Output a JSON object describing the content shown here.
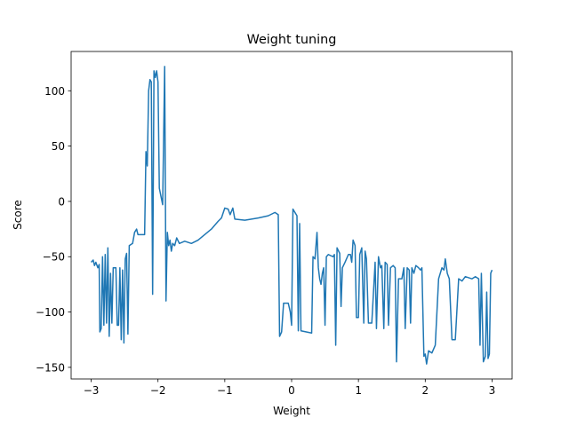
{
  "chart_data": {
    "type": "line",
    "title": "Weight tuning",
    "x_label": "Weight",
    "y_label": "Score",
    "color": "#1f77b4",
    "x": [
      -3.0,
      -2.97,
      -2.95,
      -2.93,
      -2.9,
      -2.88,
      -2.87,
      -2.85,
      -2.83,
      -2.81,
      -2.79,
      -2.77,
      -2.75,
      -2.73,
      -2.71,
      -2.69,
      -2.67,
      -2.63,
      -2.61,
      -2.59,
      -2.57,
      -2.55,
      -2.53,
      -2.51,
      -2.49,
      -2.47,
      -2.45,
      -2.43,
      -2.38,
      -2.35,
      -2.32,
      -2.3,
      -2.2,
      -2.18,
      -2.16,
      -2.14,
      -2.12,
      -2.1,
      -2.08,
      -2.06,
      -2.04,
      -2.02,
      -2.0,
      -1.98,
      -1.95,
      -1.93,
      -1.9,
      -1.88,
      -1.86,
      -1.84,
      -1.82,
      -1.8,
      -1.78,
      -1.75,
      -1.72,
      -1.68,
      -1.6,
      -1.5,
      -1.4,
      -1.3,
      -1.2,
      -1.1,
      -1.05,
      -1.0,
      -0.95,
      -0.92,
      -0.88,
      -0.85,
      -0.7,
      -0.5,
      -0.35,
      -0.25,
      -0.2,
      -0.18,
      -0.15,
      -0.12,
      -0.05,
      -0.02,
      0.0,
      0.02,
      0.05,
      0.08,
      0.1,
      0.12,
      0.14,
      0.3,
      0.32,
      0.35,
      0.38,
      0.4,
      0.42,
      0.44,
      0.46,
      0.48,
      0.5,
      0.52,
      0.55,
      0.62,
      0.64,
      0.66,
      0.68,
      0.72,
      0.74,
      0.76,
      0.8,
      0.85,
      0.88,
      0.9,
      0.92,
      0.95,
      0.97,
      1.0,
      1.02,
      1.05,
      1.08,
      1.1,
      1.12,
      1.15,
      1.2,
      1.25,
      1.27,
      1.3,
      1.33,
      1.35,
      1.38,
      1.4,
      1.43,
      1.45,
      1.48,
      1.52,
      1.55,
      1.57,
      1.6,
      1.65,
      1.68,
      1.7,
      1.73,
      1.76,
      1.78,
      1.8,
      1.83,
      1.86,
      1.9,
      1.93,
      1.95,
      1.98,
      2.0,
      2.02,
      2.05,
      2.1,
      2.15,
      2.2,
      2.25,
      2.28,
      2.3,
      2.33,
      2.36,
      2.4,
      2.45,
      2.5,
      2.55,
      2.6,
      2.7,
      2.75,
      2.8,
      2.82,
      2.84,
      2.87,
      2.9,
      2.92,
      2.94,
      2.96,
      2.98,
      3.0
    ],
    "values": [
      -55,
      -53,
      -58,
      -55,
      -60,
      -57,
      -118,
      -115,
      -50,
      -112,
      -48,
      -110,
      -42,
      -122,
      -65,
      -110,
      -60,
      -60,
      -112,
      -112,
      -60,
      -125,
      -62,
      -128,
      -52,
      -47,
      -120,
      -40,
      -38,
      -28,
      -25,
      -30,
      -30,
      45,
      32,
      100,
      110,
      108,
      -84,
      118,
      112,
      118,
      108,
      12,
      3,
      -3,
      122,
      -90,
      -28,
      -40,
      -35,
      -45,
      -38,
      -40,
      -33,
      -38,
      -36,
      -38,
      -35,
      -30,
      -25,
      -18,
      -15,
      -6,
      -7,
      -12,
      -6,
      -16,
      -17,
      -15,
      -13,
      -10,
      -12,
      -122,
      -118,
      -92,
      -92,
      -100,
      -112,
      -7,
      -10,
      -13,
      -117,
      -20,
      -117,
      -119,
      -50,
      -52,
      -28,
      -60,
      -70,
      -75,
      -65,
      -60,
      -112,
      -50,
      -48,
      -50,
      -48,
      -130,
      -42,
      -47,
      -95,
      -60,
      -55,
      -48,
      -48,
      -55,
      -35,
      -40,
      -105,
      -105,
      -48,
      -42,
      -110,
      -45,
      -52,
      -110,
      -110,
      -55,
      -115,
      -50,
      -60,
      -58,
      -115,
      -55,
      -57,
      -112,
      -60,
      -58,
      -60,
      -145,
      -70,
      -70,
      -60,
      -115,
      -60,
      -62,
      -110,
      -60,
      -65,
      -58,
      -60,
      -62,
      -60,
      -140,
      -138,
      -147,
      -135,
      -137,
      -130,
      -70,
      -60,
      -62,
      -52,
      -65,
      -70,
      -125,
      -125,
      -70,
      -72,
      -68,
      -70,
      -68,
      -70,
      -130,
      -65,
      -145,
      -140,
      -82,
      -142,
      -138,
      -65,
      -62
    ],
    "xlim": [
      -3.3,
      3.3
    ],
    "ylim": [
      -160.5,
      135.5
    ],
    "xticks": [
      {
        "value": -3,
        "label": "−3"
      },
      {
        "value": -2,
        "label": "−2"
      },
      {
        "value": -1,
        "label": "−1"
      },
      0,
      1,
      2,
      3
    ],
    "yticks": [
      {
        "value": -150,
        "label": "−150"
      },
      {
        "value": -100,
        "label": "−100"
      },
      {
        "value": -50,
        "label": "−50"
      },
      0,
      50,
      100
    ]
  }
}
